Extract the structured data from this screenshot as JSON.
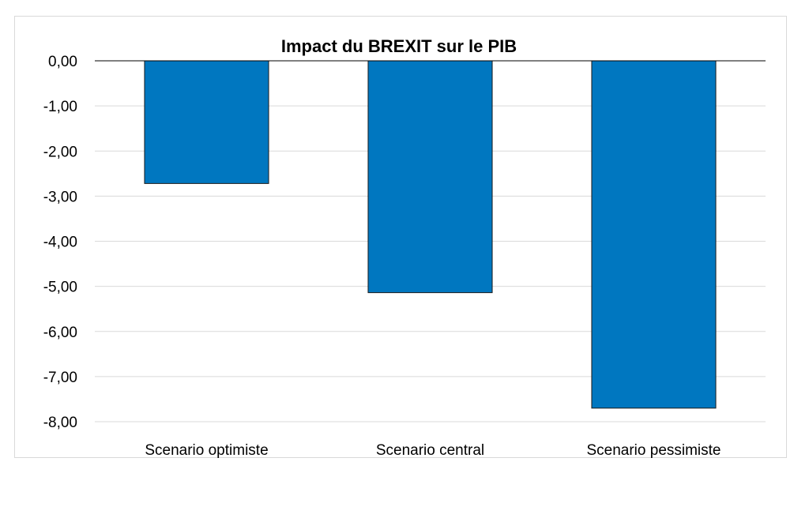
{
  "chart_data": {
    "type": "bar",
    "title": "Impact du BREXIT sur le PIB",
    "categories": [
      "Scenario optimiste",
      "Scenario central",
      "Scenario pessimiste"
    ],
    "values": [
      -2.72,
      -5.14,
      -7.7
    ],
    "ylim": [
      -8,
      0
    ],
    "yticks": [
      "0,00",
      "-1,00",
      "-2,00",
      "-3,00",
      "-4,00",
      "-5,00",
      "-6,00",
      "-7,00",
      "-8,00"
    ],
    "xlabel": "",
    "ylabel": "",
    "grid": true,
    "bar_color": "#0077c0"
  }
}
